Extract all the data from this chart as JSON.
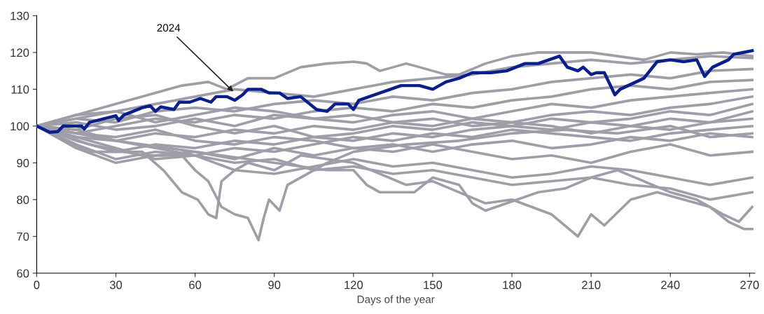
{
  "chart_data": {
    "type": "line",
    "xlabel": "Days of the year",
    "xlim": [
      0,
      272
    ],
    "xticks": [
      0,
      30,
      60,
      90,
      120,
      150,
      180,
      210,
      240,
      270
    ],
    "ylim": [
      60,
      130
    ],
    "yticks": [
      60,
      70,
      80,
      90,
      100,
      110,
      120,
      130
    ],
    "grid": false,
    "marker": "none",
    "line_style": "solid",
    "annotations": [
      {
        "text": "2024",
        "x": 75,
        "y": 109
      }
    ],
    "series": [
      {
        "color": "#9d9ea8",
        "x": [
          0,
          20,
          40,
          55,
          60,
          65,
          70,
          75,
          80,
          82,
          84,
          86,
          88,
          92,
          95,
          100,
          110,
          120,
          140,
          160,
          180,
          200,
          220,
          240,
          255,
          271
        ],
        "values": [
          100,
          95,
          92,
          92,
          88,
          85,
          78,
          76,
          75,
          72,
          69,
          75,
          80,
          77,
          84,
          86,
          90,
          93,
          95,
          96,
          98,
          99,
          98,
          100,
          97,
          98
        ]
      },
      {
        "color": "#9d9ea8",
        "x": [
          0,
          20,
          40,
          48,
          55,
          61,
          65,
          68,
          70,
          75,
          80,
          90,
          100,
          120,
          140,
          150,
          160,
          170,
          180,
          195,
          205,
          210,
          215,
          225,
          235,
          245,
          255,
          262,
          268,
          271
        ],
        "values": [
          100,
          93,
          93,
          88,
          82,
          80,
          76,
          75,
          85,
          88,
          90,
          88,
          92,
          90,
          84,
          85,
          82,
          79,
          80,
          76,
          70,
          76,
          73,
          80,
          82,
          80,
          78,
          74,
          72,
          72
        ]
      },
      {
        "color": "#9d9ea8",
        "x": [
          0,
          30,
          60,
          90,
          110,
          120,
          125,
          130,
          143,
          150,
          160,
          165,
          170,
          178,
          190,
          200,
          210,
          220,
          230,
          240,
          250,
          260,
          266,
          271
        ],
        "values": [
          100,
          96,
          93,
          90,
          88,
          88,
          84,
          82,
          82,
          86,
          84,
          79,
          77,
          79,
          82,
          83,
          86,
          88,
          85,
          82,
          80,
          76,
          74,
          78
        ]
      },
      {
        "color": "#9d9ea8",
        "x": [
          0,
          20,
          40,
          50,
          55,
          65,
          72,
          80,
          90,
          100,
          110,
          120,
          125,
          130,
          135,
          140,
          150,
          155,
          160,
          170,
          180,
          190,
          200,
          210,
          220,
          230,
          240,
          250,
          260,
          271
        ],
        "values": [
          100,
          104,
          108,
          110,
          111,
          112,
          110,
          113,
          113,
          116,
          117,
          117.5,
          117,
          115,
          116,
          117,
          115,
          114,
          114,
          117,
          119,
          120,
          120,
          120,
          119,
          118,
          120,
          119.5,
          120,
          119
        ]
      },
      {
        "color": "#9d9ea8",
        "x": [
          0,
          15,
          30,
          45,
          60,
          75,
          90,
          105,
          120,
          135,
          150,
          165,
          180,
          195,
          210,
          225,
          240,
          255,
          271
        ],
        "values": [
          100,
          103,
          104,
          106,
          108,
          110,
          109,
          108,
          110,
          112,
          113,
          114,
          116,
          117,
          118,
          117,
          118,
          119,
          118.5
        ]
      },
      {
        "color": "#9d9ea8",
        "x": [
          0,
          15,
          30,
          45,
          60,
          75,
          90,
          105,
          120,
          135,
          150,
          165,
          180,
          195,
          210,
          225,
          240,
          255,
          271
        ],
        "values": [
          100,
          102,
          101,
          104,
          105,
          104,
          106,
          107,
          106,
          108,
          107,
          109,
          110,
          112,
          113,
          114,
          113,
          115,
          115.5
        ]
      },
      {
        "color": "#9d9ea8",
        "x": [
          0,
          15,
          30,
          45,
          60,
          75,
          90,
          105,
          120,
          135,
          150,
          165,
          180,
          195,
          210,
          225,
          240,
          255,
          271
        ],
        "values": [
          100,
          98,
          100,
          102,
          101,
          103,
          102,
          104,
          105,
          104,
          106,
          105,
          107,
          108,
          110,
          111,
          110,
          112,
          112.5
        ]
      },
      {
        "color": "#9d9ea8",
        "x": [
          0,
          15,
          30,
          45,
          60,
          75,
          90,
          105,
          120,
          135,
          150,
          165,
          180,
          195,
          210,
          225,
          240,
          255,
          271
        ],
        "values": [
          100,
          101,
          99,
          100,
          102,
          100,
          103,
          102,
          101,
          103,
          104,
          102,
          104,
          106,
          105,
          107,
          108,
          109,
          110
        ]
      },
      {
        "color": "#9d9ea8",
        "x": [
          0,
          15,
          30,
          45,
          60,
          75,
          90,
          105,
          120,
          135,
          150,
          165,
          180,
          195,
          210,
          225,
          240,
          255,
          271
        ],
        "values": [
          100,
          97,
          96,
          98,
          97,
          99,
          98,
          100,
          99,
          101,
          100,
          102,
          101,
          103,
          104,
          103,
          105,
          106,
          108
        ]
      },
      {
        "color": "#9d9ea8",
        "x": [
          0,
          15,
          30,
          45,
          60,
          75,
          90,
          105,
          120,
          135,
          150,
          165,
          180,
          195,
          210,
          225,
          240,
          255,
          271
        ],
        "values": [
          100,
          99,
          102,
          103,
          100,
          98,
          100,
          97,
          98,
          100,
          99,
          101,
          100,
          99,
          101,
          102,
          104,
          103,
          106
        ]
      },
      {
        "color": "#9d9ea8",
        "x": [
          0,
          15,
          30,
          45,
          60,
          75,
          90,
          105,
          120,
          135,
          150,
          165,
          180,
          195,
          210,
          225,
          240,
          255,
          271
        ],
        "values": [
          100,
          96,
          93,
          95,
          94,
          96,
          95,
          97,
          96,
          98,
          97,
          99,
          100,
          102,
          101,
          100,
          102,
          101,
          104
        ]
      },
      {
        "color": "#9d9ea8",
        "x": [
          0,
          15,
          30,
          45,
          60,
          75,
          90,
          105,
          120,
          135,
          150,
          165,
          180,
          195,
          210,
          225,
          240,
          255,
          271
        ],
        "values": [
          100,
          102,
          104,
          101,
          103,
          105,
          104,
          102,
          103,
          101,
          102,
          100,
          101,
          100,
          98,
          100,
          99,
          101,
          102
        ]
      },
      {
        "color": "#9d9ea8",
        "x": [
          0,
          15,
          30,
          45,
          60,
          75,
          90,
          105,
          120,
          135,
          150,
          165,
          180,
          195,
          210,
          225,
          240,
          255,
          271
        ],
        "values": [
          100,
          95,
          91,
          93,
          92,
          94,
          93,
          95,
          97,
          96,
          98,
          97,
          99,
          98,
          97,
          96,
          98,
          99,
          100
        ]
      },
      {
        "color": "#9d9ea8",
        "x": [
          0,
          15,
          30,
          45,
          60,
          75,
          90,
          105,
          120,
          135,
          150,
          165,
          180,
          195,
          210,
          225,
          240,
          255,
          271
        ],
        "values": [
          100,
          98,
          97,
          99,
          96,
          95,
          97,
          96,
          94,
          95,
          93,
          95,
          96,
          94,
          95,
          97,
          96,
          98,
          97
        ]
      },
      {
        "color": "#9d9ea8",
        "x": [
          0,
          15,
          30,
          45,
          60,
          75,
          90,
          105,
          120,
          135,
          150,
          165,
          180,
          195,
          210,
          225,
          240,
          255,
          271
        ],
        "values": [
          100,
          94,
          90,
          92,
          93,
          91,
          94,
          92,
          94,
          93,
          95,
          93,
          91,
          92,
          90,
          93,
          95,
          92,
          93
        ]
      },
      {
        "color": "#9d9ea8",
        "x": [
          0,
          15,
          30,
          45,
          60,
          75,
          90,
          105,
          120,
          135,
          150,
          165,
          180,
          195,
          210,
          225,
          240,
          255,
          271
        ],
        "values": [
          100,
          97,
          94,
          91,
          92,
          88,
          87,
          89,
          91,
          89,
          90,
          88,
          86,
          87,
          89,
          88,
          86,
          84,
          86
        ]
      },
      {
        "color": "#9d9ea8",
        "x": [
          0,
          15,
          30,
          45,
          60,
          75,
          90,
          105,
          120,
          135,
          150,
          165,
          180,
          195,
          210,
          225,
          240,
          255,
          271
        ],
        "values": [
          100,
          99,
          96,
          94,
          92,
          90,
          91,
          88,
          89,
          87,
          88,
          86,
          84,
          85,
          86,
          84,
          83,
          80,
          82
        ]
      },
      {
        "color": "#0a1f8c",
        "x": [
          0,
          5,
          8,
          10,
          17,
          18,
          20,
          30,
          31,
          33,
          40,
          43,
          45,
          47,
          52,
          54,
          58,
          62,
          66,
          68,
          72,
          75,
          78,
          80,
          85,
          88,
          92,
          95,
          100,
          106,
          110,
          113,
          118,
          120,
          122,
          130,
          138,
          145,
          150,
          155,
          160,
          165,
          172,
          178,
          185,
          190,
          198,
          201,
          205,
          207,
          210,
          212,
          215,
          217,
          219,
          221,
          224,
          230,
          235,
          240,
          245,
          250,
          253,
          256,
          262,
          264,
          271
        ],
        "values": [
          100,
          98.3,
          98.5,
          100,
          100,
          99.2,
          101,
          102.8,
          101.5,
          103,
          105,
          105.5,
          104,
          105.2,
          104.5,
          106.5,
          106.5,
          107.5,
          106.5,
          108,
          108,
          107,
          108.5,
          110,
          110,
          109,
          109,
          107.5,
          108,
          104.5,
          104,
          106,
          106,
          104.5,
          107,
          109,
          111,
          111,
          110,
          112,
          113,
          114.5,
          114.5,
          115,
          117,
          117,
          119,
          116,
          115,
          116,
          114,
          114.5,
          114.5,
          111.5,
          108.5,
          110,
          111,
          113,
          117.5,
          118,
          117.5,
          118,
          113.5,
          116,
          118,
          119.5,
          120.5
        ]
      }
    ]
  }
}
